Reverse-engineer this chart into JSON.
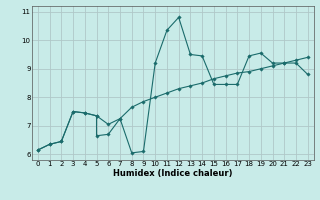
{
  "xlabel": "Humidex (Indice chaleur)",
  "bg_color": "#c8ebe8",
  "grid_color": "#b0c8c8",
  "line_color": "#1a6b6b",
  "xlim": [
    -0.5,
    23.5
  ],
  "ylim": [
    5.8,
    11.2
  ],
  "xticks": [
    0,
    1,
    2,
    3,
    4,
    5,
    6,
    7,
    8,
    9,
    10,
    11,
    12,
    13,
    14,
    15,
    16,
    17,
    18,
    19,
    20,
    21,
    22,
    23
  ],
  "yticks": [
    6,
    7,
    8,
    9,
    10,
    11
  ],
  "curve1_x": [
    0,
    1,
    2,
    3,
    4,
    5,
    5,
    6,
    7,
    8,
    9,
    10,
    11,
    12,
    13,
    14,
    15,
    16,
    17,
    18,
    19,
    20,
    21,
    22,
    23
  ],
  "curve1_y": [
    6.15,
    6.35,
    6.45,
    7.5,
    7.45,
    7.35,
    6.65,
    6.7,
    7.25,
    6.05,
    6.1,
    9.2,
    10.35,
    10.8,
    9.5,
    9.45,
    8.45,
    8.45,
    8.45,
    9.45,
    9.55,
    9.2,
    9.2,
    9.2,
    8.8
  ],
  "curve2_x": [
    0,
    1,
    2,
    3,
    4,
    5,
    6,
    7,
    8,
    9,
    10,
    11,
    12,
    13,
    14,
    15,
    16,
    17,
    18,
    19,
    20,
    21,
    22,
    23
  ],
  "curve2_y": [
    6.15,
    6.35,
    6.45,
    7.5,
    7.45,
    7.35,
    7.05,
    7.25,
    7.65,
    7.85,
    8.0,
    8.15,
    8.3,
    8.4,
    8.5,
    8.65,
    8.75,
    8.85,
    8.9,
    9.0,
    9.1,
    9.2,
    9.3,
    9.4
  ]
}
